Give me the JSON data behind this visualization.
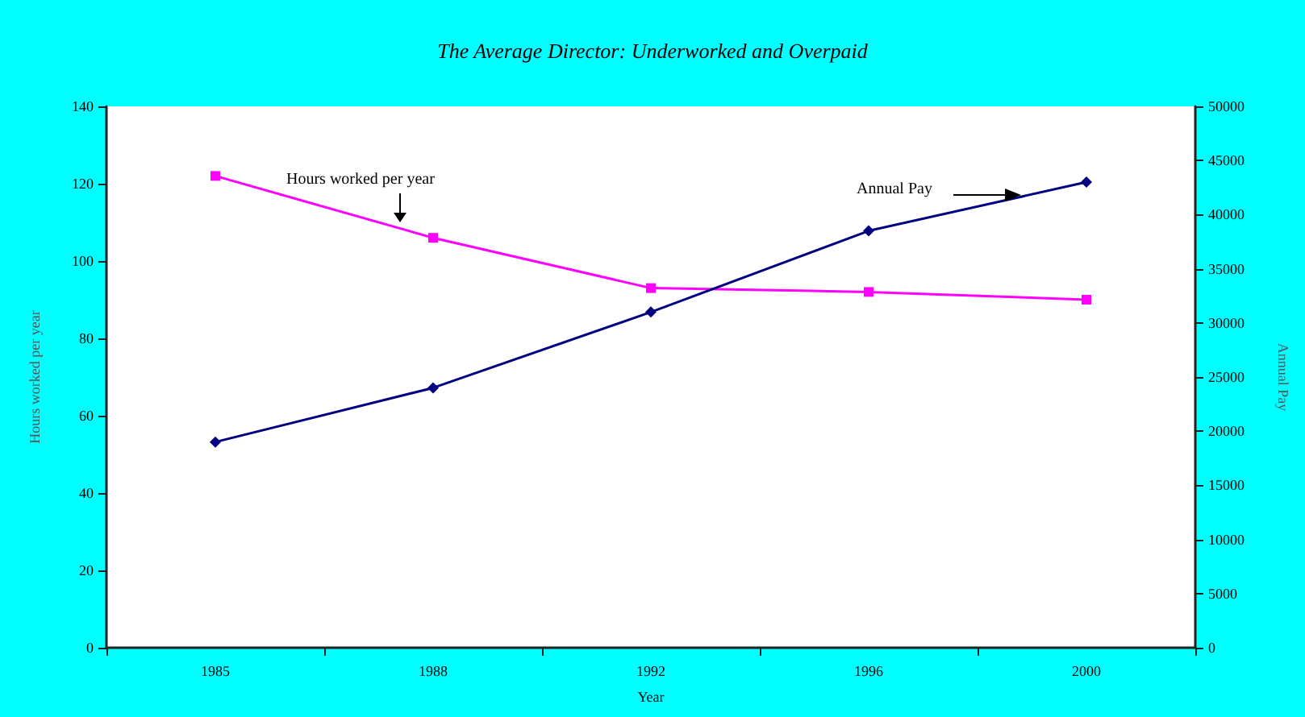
{
  "chart_data": {
    "type": "line",
    "title": "The Average Director: Underworked and Overpaid",
    "xlabel": "Year",
    "ylabel": "Hours worked per year",
    "y2label": "Annual Pay",
    "categories": [
      "1985",
      "1988",
      "1992",
      "1996",
      "2000"
    ],
    "series": [
      {
        "name": "Hours worked per year",
        "color": "#ff00ff",
        "marker": "square",
        "values": [
          122,
          106,
          93,
          92,
          90
        ]
      },
      {
        "name": "Annual Pay",
        "color": "#000080",
        "marker": "diamond",
        "axis": "y2",
        "values": [
          19000,
          24000,
          31000,
          38500,
          43000
        ]
      }
    ],
    "ylim": [
      0,
      140
    ],
    "yticks": [
      0,
      20,
      40,
      60,
      80,
      100,
      120,
      140
    ],
    "y2lim": [
      0,
      50000
    ],
    "y2ticks": [
      0,
      5000,
      10000,
      15000,
      20000,
      25000,
      30000,
      35000,
      40000,
      45000,
      50000
    ],
    "grid": false,
    "legend": false
  }
}
